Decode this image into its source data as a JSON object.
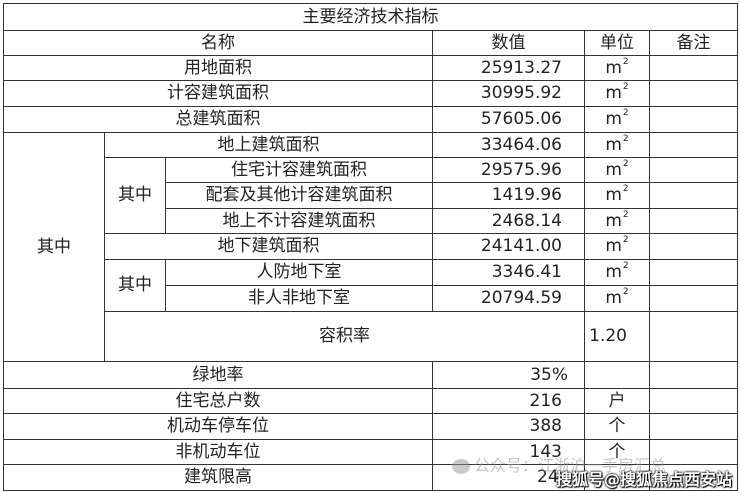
{
  "table": {
    "title": "主要经济技术指标",
    "headers": {
      "name": "名称",
      "value": "数值",
      "unit": "单位",
      "note": "备注"
    },
    "group_label": "其中",
    "sub_group_label": "其中",
    "unit_area": "m",
    "unit_sup": "2",
    "rows": {
      "land_area": {
        "name": "用地面积",
        "value": "25913.27"
      },
      "far_area": {
        "name": "计容建筑面积",
        "value": "30995.92"
      },
      "total_area": {
        "name": "总建筑面积",
        "value": "57605.06"
      },
      "above_ground": {
        "name": "地上建筑面积",
        "value": "33464.06"
      },
      "residential_far": {
        "name": "住宅计容建筑面积",
        "value": "29575.96"
      },
      "supporting_far": {
        "name": "配套及其他计容建筑面积",
        "value": "1419.96"
      },
      "above_non_far": {
        "name": "地上不计容建筑面积",
        "value": "2468.14"
      },
      "underground": {
        "name": "地下建筑面积",
        "value": "24141.00"
      },
      "civil_defense": {
        "name": "人防地下室",
        "value": "3346.41"
      },
      "non_civil_defense": {
        "name": "非人非地下室",
        "value": "20794.59"
      },
      "plot_ratio": {
        "name": "容积率",
        "value": "1.20"
      },
      "green_ratio": {
        "name": "绿地率",
        "value": "35%"
      },
      "households": {
        "name": "住宅总户数",
        "value": "216",
        "unit": "户"
      },
      "motor_parking": {
        "name": "机动车停车位",
        "value": "388",
        "unit": "个"
      },
      "non_motor_parking": {
        "name": "非机动车位",
        "value": "143",
        "unit": "个"
      },
      "height_limit": {
        "name": "建筑限高",
        "value": "24"
      }
    }
  },
  "watermarks": {
    "wechat": "公众号：江浙沪一手房汇总",
    "sohu": "搜狐号@搜狐焦点西安站"
  }
}
